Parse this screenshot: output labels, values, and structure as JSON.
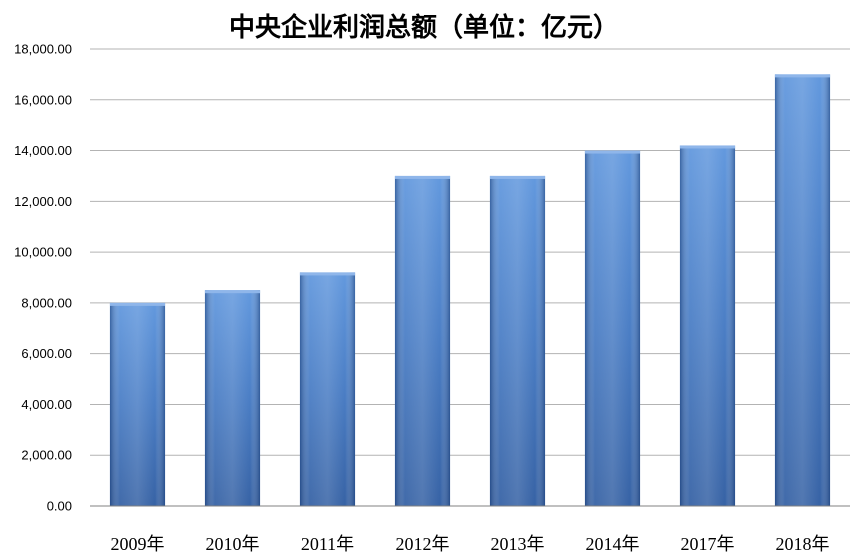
{
  "chart_data": {
    "type": "bar",
    "title": "中央企业利润总额（单位：亿元）",
    "categories": [
      "2009年",
      "2010年",
      "2011年",
      "2012年",
      "2013年",
      "2014年",
      "2017年",
      "2018年"
    ],
    "values": [
      8000,
      8500,
      9200,
      13000,
      13000,
      14000,
      14200,
      17000
    ],
    "ylim": [
      0,
      18000
    ],
    "yticks": [
      0,
      2000,
      4000,
      6000,
      8000,
      10000,
      12000,
      14000,
      16000,
      18000
    ],
    "ytick_labels": [
      "0.00",
      "2,000.00",
      "4,000.00",
      "6,000.00",
      "8,000.00",
      "10,000.00",
      "12,000.00",
      "14,000.00",
      "16,000.00",
      "18,000.00"
    ],
    "xlabel": "",
    "ylabel": "",
    "grid": true,
    "legend": "none",
    "bar_color": "#4a7fc7",
    "bar_style": "gradient-3d"
  }
}
